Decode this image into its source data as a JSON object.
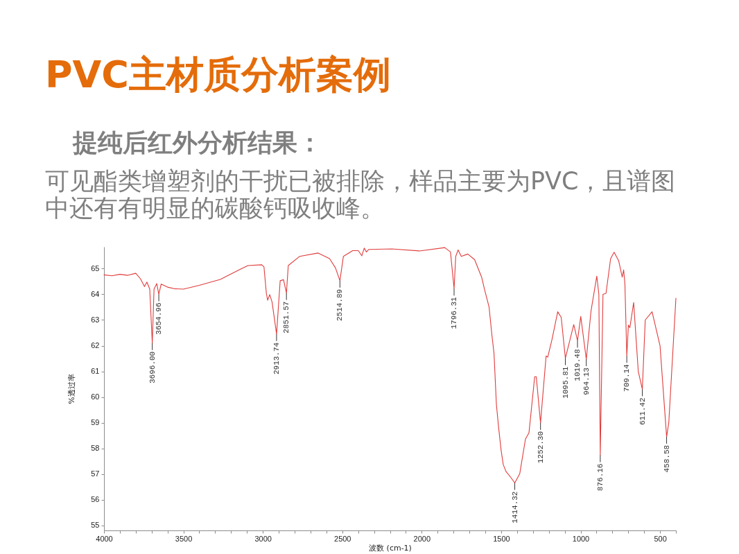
{
  "chart_data": {
    "type": "line",
    "title": "PVC主材质分析案例",
    "subtitle": "提纯后红外分析结果：",
    "xlabel": "波数 (cm-1)",
    "ylabel": "%透过率",
    "x": [
      4000,
      3950,
      3900,
      3850,
      3800,
      3770,
      3745,
      3730,
      3712,
      3696.0,
      3685,
      3668,
      3654.96,
      3640,
      3600,
      3558,
      3500,
      3400,
      3268,
      3150,
      3094,
      3007,
      2993,
      2978,
      2970,
      2957,
      2942,
      2913.74,
      2891,
      2870,
      2851.57,
      2840,
      2768,
      2652,
      2580,
      2543,
      2514.89,
      2493,
      2435,
      2399,
      2377,
      2362,
      2348,
      2333,
      2188,
      2015,
      1855,
      1819,
      1796.31,
      1786,
      1771,
      1751,
      1710,
      1667,
      1623,
      1605,
      1576,
      1558,
      1545,
      1530,
      1516,
      1500,
      1487,
      1470,
      1441,
      1414.32,
      1383,
      1347,
      1325,
      1289,
      1279,
      1252.3,
      1217,
      1207,
      1180,
      1144,
      1122,
      1095.81,
      1043,
      1019.48,
      999,
      964.13,
      934,
      898,
      885,
      876.16,
      859,
      840,
      811,
      789,
      760,
      738,
      729,
      721,
      709.14,
      699,
      690,
      666,
      637,
      611.42,
      593,
      550,
      500,
      458.58,
      445,
      400
    ],
    "series": [
      {
        "color": "#e03c3c",
        "values": [
          64.76,
          64.72,
          64.78,
          64.74,
          64.82,
          64.6,
          64.3,
          64.48,
          64.2,
          62.1,
          64.2,
          64.42,
          64.0,
          64.4,
          64.28,
          64.22,
          64.2,
          64.35,
          64.58,
          64.95,
          65.12,
          65.15,
          65.07,
          64.04,
          63.77,
          63.99,
          63.7,
          62.45,
          64.53,
          64.57,
          64.05,
          65.12,
          65.48,
          65.61,
          65.39,
          65.03,
          64.53,
          65.48,
          65.7,
          65.7,
          65.5,
          65.8,
          65.65,
          65.75,
          65.77,
          65.69,
          65.82,
          65.65,
          64.22,
          65.48,
          65.73,
          65.48,
          65.57,
          65.35,
          64.67,
          64.2,
          63.5,
          62.4,
          61.7,
          59.71,
          58.81,
          57.91,
          57.37,
          57.1,
          56.88,
          56.65,
          57.01,
          58.36,
          58.6,
          60.79,
          60.79,
          58.99,
          61.6,
          61.55,
          62.24,
          63.32,
          63.1,
          61.51,
          62.82,
          62.19,
          63.14,
          61.47,
          63.37,
          64.71,
          64.0,
          57.73,
          64.0,
          64.04,
          65.39,
          65.64,
          65.3,
          64.67,
          64.95,
          64.4,
          61.6,
          62.8,
          62.7,
          63.68,
          61.0,
          60.3,
          63.0,
          63.32,
          62.0,
          58.45,
          58.99,
          63.85
        ]
      }
    ],
    "xlim": [
      4000,
      400
    ],
    "ylim": [
      54.8,
      65.85
    ],
    "xticks": [
      4000,
      {
        "value": 3900,
        "label": null
      },
      {
        "value": 3800,
        "label": null
      },
      {
        "value": 3700,
        "label": null
      },
      {
        "value": 3600,
        "label": null
      },
      3500,
      {
        "value": 3400,
        "label": null
      },
      {
        "value": 3300,
        "label": null
      },
      {
        "value": 3200,
        "label": null
      },
      {
        "value": 3100,
        "label": null
      },
      3000,
      {
        "value": 2900,
        "label": null
      },
      {
        "value": 2800,
        "label": null
      },
      {
        "value": 2700,
        "label": null
      },
      {
        "value": 2600,
        "label": null
      },
      2500,
      {
        "value": 2400,
        "label": null
      },
      {
        "value": 2300,
        "label": null
      },
      {
        "value": 2200,
        "label": null
      },
      {
        "value": 2100,
        "label": null
      },
      2000,
      {
        "value": 1900,
        "label": null
      },
      {
        "value": 1800,
        "label": null
      },
      {
        "value": 1700,
        "label": null
      },
      {
        "value": 1600,
        "label": null
      },
      1500,
      {
        "value": 1400,
        "label": null
      },
      {
        "value": 1300,
        "label": null
      },
      {
        "value": 1200,
        "label": null
      },
      {
        "value": 1100,
        "label": null
      },
      1000,
      {
        "value": 900,
        "label": null
      },
      {
        "value": 800,
        "label": null
      },
      {
        "value": 700,
        "label": null
      },
      {
        "value": 600,
        "label": null
      },
      500,
      {
        "value": 400,
        "label": null
      }
    ],
    "yticks": [
      55,
      56,
      57,
      58,
      59,
      60,
      61,
      62,
      63,
      64,
      65
    ],
    "grid": false,
    "annotations": [
      "可见酯类增塑剂的干扰已被排除，样品主要为PVC，且谱图中还有有明显的碳酸钙吸收峰。",
      {
        "text": "3696.00",
        "x": 3696.0,
        "y": 62.1
      },
      {
        "text": "3654.96",
        "x": 3654.96,
        "y": 64.0
      },
      {
        "text": "2913.74",
        "x": 2913.74,
        "y": 62.45
      },
      {
        "text": "2851.57",
        "x": 2851.57,
        "y": 64.05
      },
      {
        "text": "2514.89",
        "x": 2514.89,
        "y": 64.53
      },
      {
        "text": "1796.31",
        "x": 1796.31,
        "y": 64.22
      },
      {
        "text": "1414.32",
        "x": 1414.32,
        "y": 56.65
      },
      {
        "text": "1252.30",
        "x": 1252.3,
        "y": 58.99
      },
      {
        "text": "1095.81",
        "x": 1095.81,
        "y": 61.51
      },
      {
        "text": "1019.48",
        "x": 1019.48,
        "y": 62.19
      },
      {
        "text": "964.13",
        "x": 964.13,
        "y": 61.47
      },
      {
        "text": "876.16",
        "x": 876.16,
        "y": 57.73
      },
      {
        "text": "709.14",
        "x": 709.14,
        "y": 61.6
      },
      {
        "text": "611.42",
        "x": 611.42,
        "y": 60.3
      },
      {
        "text": "458.58",
        "x": 458.58,
        "y": 58.45
      }
    ]
  }
}
